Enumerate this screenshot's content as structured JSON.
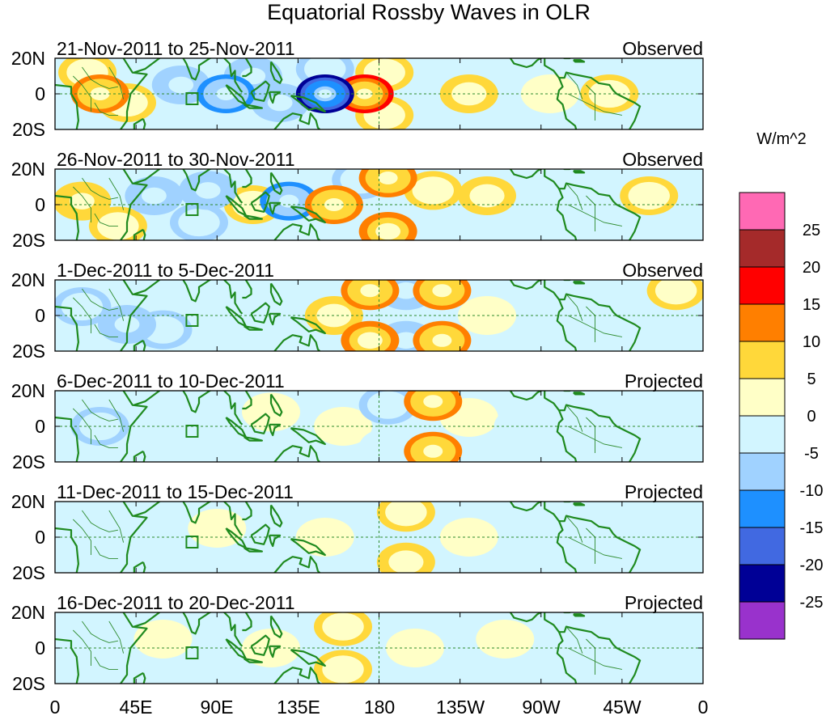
{
  "figure": {
    "title": "Equatorial Rossby Waves in OLR",
    "colorbar_label": "W/m^2",
    "lon_labels": [
      "0",
      "45E",
      "90E",
      "135E",
      "180",
      "135W",
      "90W",
      "45W",
      "0"
    ],
    "lat_labels": [
      "20N",
      "0",
      "20S"
    ]
  },
  "colorbar": {
    "levels": [
      "25",
      "20",
      "15",
      "10",
      "5",
      "0",
      "-5",
      "-10",
      "-15",
      "-20",
      "-25"
    ],
    "colors": [
      "#ff69b4",
      "#a52a2a",
      "#ff0000",
      "#ff7f00",
      "#ffd83a",
      "#ffffc7",
      "#d2f5ff",
      "#a0d2ff",
      "#1e90ff",
      "#4169e1",
      "#000096",
      "#9932cc"
    ]
  },
  "panels": [
    {
      "period": "21-Nov-2011 to 25-Nov-2011",
      "type": "Observed"
    },
    {
      "period": "26-Nov-2011 to 30-Nov-2011",
      "type": "Observed"
    },
    {
      "period": "1-Dec-2011 to 5-Dec-2011",
      "type": "Observed"
    },
    {
      "period": "6-Dec-2011 to 10-Dec-2011",
      "type": "Projected"
    },
    {
      "period": "11-Dec-2011 to 15-Dec-2011",
      "type": "Projected"
    },
    {
      "period": "16-Dec-2011 to 20-Dec-2011",
      "type": "Projected"
    }
  ],
  "anomalies": [
    [
      {
        "lon": 25,
        "lat": 0,
        "v": 12
      },
      {
        "lon": 18,
        "lat": 12,
        "v": 6
      },
      {
        "lon": 40,
        "lat": -5,
        "v": 6
      },
      {
        "lon": 70,
        "lat": 5,
        "v": -8
      },
      {
        "lon": 95,
        "lat": 0,
        "v": -12
      },
      {
        "lon": 110,
        "lat": 10,
        "v": -8
      },
      {
        "lon": 125,
        "lat": -5,
        "v": -8
      },
      {
        "lon": 150,
        "lat": 0,
        "v": -22
      },
      {
        "lon": 150,
        "lat": 14,
        "v": -6
      },
      {
        "lon": 172,
        "lat": 0,
        "v": 16
      },
      {
        "lon": 183,
        "lat": 12,
        "v": 6
      },
      {
        "lon": 183,
        "lat": -12,
        "v": 6
      },
      {
        "lon": 210,
        "lat": 5,
        "v": -5
      },
      {
        "lon": 230,
        "lat": 0,
        "v": 5
      },
      {
        "lon": 275,
        "lat": 0,
        "v": 3
      },
      {
        "lon": 308,
        "lat": 0,
        "v": 6
      },
      {
        "lon": 330,
        "lat": 10,
        "v": -4
      }
    ],
    [
      {
        "lon": 15,
        "lat": 2,
        "v": 9
      },
      {
        "lon": 35,
        "lat": -12,
        "v": 6
      },
      {
        "lon": 55,
        "lat": 5,
        "v": -8
      },
      {
        "lon": 85,
        "lat": 8,
        "v": -9
      },
      {
        "lon": 80,
        "lat": -10,
        "v": -7
      },
      {
        "lon": 110,
        "lat": 0,
        "v": 6
      },
      {
        "lon": 130,
        "lat": 2,
        "v": -12
      },
      {
        "lon": 155,
        "lat": 0,
        "v": 12
      },
      {
        "lon": 170,
        "lat": 14,
        "v": -6
      },
      {
        "lon": 185,
        "lat": 15,
        "v": 11
      },
      {
        "lon": 185,
        "lat": -15,
        "v": 10
      },
      {
        "lon": 210,
        "lat": 8,
        "v": 6
      },
      {
        "lon": 205,
        "lat": -8,
        "v": -4
      },
      {
        "lon": 240,
        "lat": 5,
        "v": 5
      },
      {
        "lon": 300,
        "lat": -5,
        "v": -4
      },
      {
        "lon": 330,
        "lat": 5,
        "v": 6
      }
    ],
    [
      {
        "lon": 15,
        "lat": 5,
        "v": -6
      },
      {
        "lon": 30,
        "lat": 10,
        "v": -4
      },
      {
        "lon": 40,
        "lat": -5,
        "v": -9
      },
      {
        "lon": 60,
        "lat": -8,
        "v": -6
      },
      {
        "lon": 120,
        "lat": 10,
        "v": -4
      },
      {
        "lon": 155,
        "lat": 0,
        "v": 5
      },
      {
        "lon": 175,
        "lat": 14,
        "v": 11
      },
      {
        "lon": 195,
        "lat": 14,
        "v": -8
      },
      {
        "lon": 215,
        "lat": 14,
        "v": 12
      },
      {
        "lon": 175,
        "lat": -14,
        "v": 10
      },
      {
        "lon": 195,
        "lat": -14,
        "v": -8
      },
      {
        "lon": 215,
        "lat": -14,
        "v": 12
      },
      {
        "lon": 240,
        "lat": 0,
        "v": 3
      },
      {
        "lon": 345,
        "lat": 14,
        "v": 6
      }
    ],
    [
      {
        "lon": 25,
        "lat": 0,
        "v": -6
      },
      {
        "lon": 45,
        "lat": 10,
        "v": -5
      },
      {
        "lon": 120,
        "lat": 8,
        "v": 3
      },
      {
        "lon": 160,
        "lat": 0,
        "v": 4
      },
      {
        "lon": 185,
        "lat": 12,
        "v": -6
      },
      {
        "lon": 210,
        "lat": 14,
        "v": 12
      },
      {
        "lon": 185,
        "lat": -12,
        "v": -5
      },
      {
        "lon": 210,
        "lat": -14,
        "v": 11
      },
      {
        "lon": 230,
        "lat": 5,
        "v": 3
      },
      {
        "lon": 260,
        "lat": 0,
        "v": -3
      }
    ],
    [
      {
        "lon": 30,
        "lat": 0,
        "v": -4
      },
      {
        "lon": 90,
        "lat": 5,
        "v": 2
      },
      {
        "lon": 150,
        "lat": 0,
        "v": 2
      },
      {
        "lon": 195,
        "lat": 14,
        "v": 6
      },
      {
        "lon": 195,
        "lat": -14,
        "v": 5
      },
      {
        "lon": 230,
        "lat": 0,
        "v": 2
      }
    ],
    [
      {
        "lon": 60,
        "lat": 5,
        "v": 2
      },
      {
        "lon": 120,
        "lat": 0,
        "v": 2
      },
      {
        "lon": 160,
        "lat": 12,
        "v": 6
      },
      {
        "lon": 160,
        "lat": -12,
        "v": 6
      },
      {
        "lon": 200,
        "lat": 0,
        "v": 2
      },
      {
        "lon": 250,
        "lat": 5,
        "v": 2
      }
    ]
  ]
}
